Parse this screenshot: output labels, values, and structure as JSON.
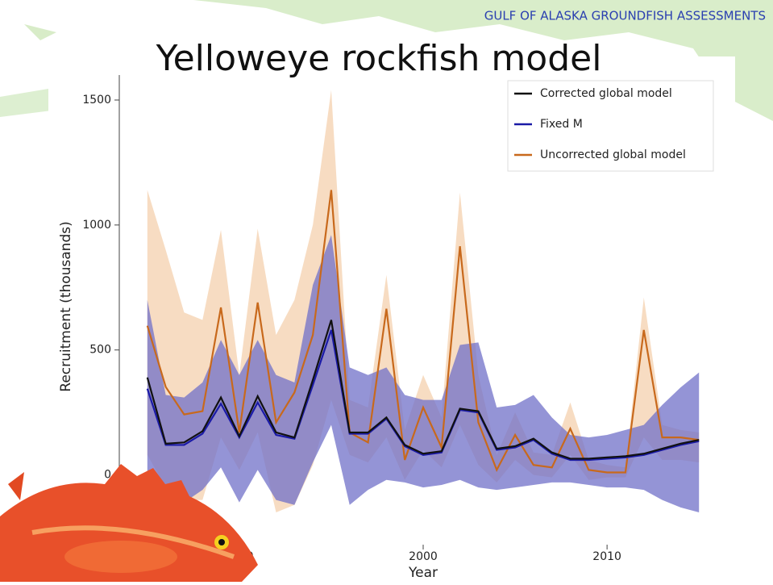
{
  "header": "GULF OF ALASKA GROUNDFISH ASSESSMENTS",
  "chart_data": {
    "type": "line",
    "title": "Yelloweye rockfish model",
    "x_label": "Year",
    "y_label": "Recruitment (thousands)",
    "x": [
      1985,
      1986,
      1987,
      1988,
      1989,
      1990,
      1991,
      1992,
      1993,
      1994,
      1995,
      1996,
      1997,
      1998,
      1999,
      2000,
      2001,
      2002,
      2003,
      2004,
      2005,
      2006,
      2007,
      2008,
      2009,
      2010,
      2011,
      2012,
      2013,
      2014,
      2015
    ],
    "xlim": [
      1984,
      2016
    ],
    "xticks": [
      1990,
      2000,
      2010
    ],
    "ylim": [
      -350,
      1600
    ],
    "yticks": [
      0,
      500,
      1000,
      1500
    ],
    "legend": "upper right",
    "series": [
      {
        "name": "Corrected global model",
        "color": "#111111",
        "values": [
          390,
          125,
          130,
          175,
          310,
          155,
          315,
          170,
          150,
          380,
          620,
          170,
          170,
          230,
          120,
          85,
          95,
          265,
          255,
          105,
          115,
          145,
          90,
          65,
          65,
          70,
          75,
          85,
          105,
          125,
          140
        ]
      },
      {
        "name": "Fixed M",
        "color": "#1a1aa6",
        "band_color": "#7070c8",
        "values": [
          345,
          120,
          120,
          165,
          285,
          150,
          290,
          160,
          145,
          360,
          580,
          165,
          165,
          225,
          115,
          80,
          90,
          260,
          250,
          100,
          110,
          140,
          85,
          60,
          60,
          65,
          70,
          80,
          100,
          120,
          135
        ],
        "upper": [
          700,
          320,
          310,
          370,
          540,
          400,
          540,
          400,
          370,
          760,
          960,
          430,
          400,
          430,
          320,
          300,
          300,
          520,
          530,
          270,
          280,
          320,
          230,
          160,
          150,
          160,
          180,
          200,
          280,
          350,
          410
        ],
        "lower": [
          -50,
          -100,
          -110,
          -60,
          30,
          -110,
          20,
          -100,
          -120,
          50,
          200,
          -120,
          -60,
          -20,
          -30,
          -50,
          -40,
          -20,
          -50,
          -60,
          -50,
          -40,
          -30,
          -30,
          -40,
          -50,
          -50,
          -60,
          -100,
          -130,
          -150
        ]
      },
      {
        "name": "Uncorrected global model",
        "color": "#c8691c",
        "band_color": "#f2c49a",
        "values": [
          597,
          352,
          242,
          255,
          670,
          170,
          690,
          210,
          330,
          560,
          1140,
          170,
          130,
          665,
          60,
          270,
          110,
          915,
          210,
          20,
          160,
          40,
          30,
          185,
          20,
          10,
          10,
          580,
          150,
          150,
          140
        ],
        "upper": [
          1140,
          900,
          650,
          620,
          980,
          400,
          985,
          560,
          700,
          1000,
          1540,
          300,
          270,
          800,
          180,
          400,
          230,
          1130,
          400,
          80,
          250,
          90,
          80,
          290,
          60,
          40,
          30,
          710,
          200,
          180,
          170
        ],
        "lower": [
          80,
          -50,
          -100,
          -100,
          150,
          20,
          170,
          -150,
          -120,
          40,
          300,
          80,
          50,
          150,
          -20,
          100,
          30,
          200,
          40,
          -30,
          60,
          0,
          -10,
          80,
          -20,
          -10,
          -10,
          150,
          60,
          60,
          50
        ]
      }
    ]
  }
}
